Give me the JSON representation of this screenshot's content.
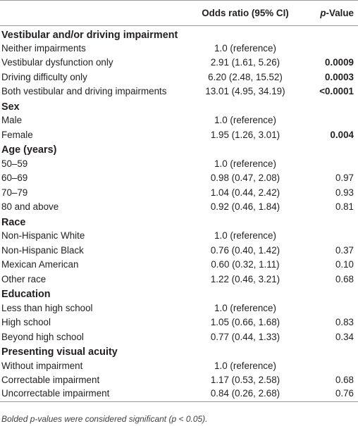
{
  "header": {
    "col1": "",
    "col2": "Odds ratio (95% CI)",
    "col3_prefix": "p",
    "col3_suffix": "-Value"
  },
  "sections": [
    {
      "title": "Vestibular and/or driving impairment",
      "rows": [
        {
          "label": "Neither impairments",
          "or": "1.0 (reference)",
          "p": "",
          "sig": false
        },
        {
          "label": "Vestibular dysfunction only",
          "or": "2.91 (1.61, 5.26)",
          "p": "0.0009",
          "sig": true
        },
        {
          "label": "Driving difficulty only",
          "or": "6.20 (2.48, 15.52)",
          "p": "0.0003",
          "sig": true
        },
        {
          "label": "Both vestibular and driving impairments",
          "or": "13.01 (4.95, 34.19)",
          "p": "<0.0001",
          "sig": true
        }
      ]
    },
    {
      "title": "Sex",
      "rows": [
        {
          "label": "Male",
          "or": "1.0 (reference)",
          "p": "",
          "sig": false
        },
        {
          "label": "Female",
          "or": "1.95 (1.26, 3.01)",
          "p": "0.004",
          "sig": true
        }
      ]
    },
    {
      "title": "Age (years)",
      "rows": [
        {
          "label": "50–59",
          "or": "1.0 (reference)",
          "p": "",
          "sig": false
        },
        {
          "label": "60–69",
          "or": "0.98 (0.47, 2.08)",
          "p": "0.97",
          "sig": false
        },
        {
          "label": "70–79",
          "or": "1.04 (0.44, 2.42)",
          "p": "0.93",
          "sig": false
        },
        {
          "label": "80 and above",
          "or": "0.92 (0.46, 1.84)",
          "p": "0.81",
          "sig": false
        }
      ]
    },
    {
      "title": "Race",
      "rows": [
        {
          "label": "Non-Hispanic White",
          "or": "1.0 (reference)",
          "p": "",
          "sig": false
        },
        {
          "label": "Non-Hispanic Black",
          "or": "0.76 (0.40, 1.42)",
          "p": "0.37",
          "sig": false
        },
        {
          "label": "Mexican American",
          "or": "0.60 (0.32, 1.11)",
          "p": "0.10",
          "sig": false
        },
        {
          "label": "Other race",
          "or": "1.22 (0.46, 3.21)",
          "p": "0.68",
          "sig": false
        }
      ]
    },
    {
      "title": "Education",
      "rows": [
        {
          "label": "Less than high school",
          "or": "1.0 (reference)",
          "p": "",
          "sig": false
        },
        {
          "label": "High school",
          "or": "1.05 (0.66, 1.68)",
          "p": "0.83",
          "sig": false
        },
        {
          "label": "Beyond high school",
          "or": "0.77 (0.44, 1.33)",
          "p": "0.34",
          "sig": false
        }
      ]
    },
    {
      "title": "Presenting visual acuity",
      "rows": [
        {
          "label": "Without impairment",
          "or": "1.0 (reference)",
          "p": "",
          "sig": false
        },
        {
          "label": "Correctable impairment",
          "or": "1.17 (0.53, 2.58)",
          "p": "0.68",
          "sig": false
        },
        {
          "label": "Uncorrectable impairment",
          "or": "0.84 (0.26, 2.68)",
          "p": "0.76",
          "sig": false
        }
      ]
    }
  ],
  "footnote": "Bolded p-values were considered significant (p < 0.05).",
  "colors": {
    "text": "#231f20",
    "rule": "#9a9a9a",
    "footnote": "#414042"
  }
}
